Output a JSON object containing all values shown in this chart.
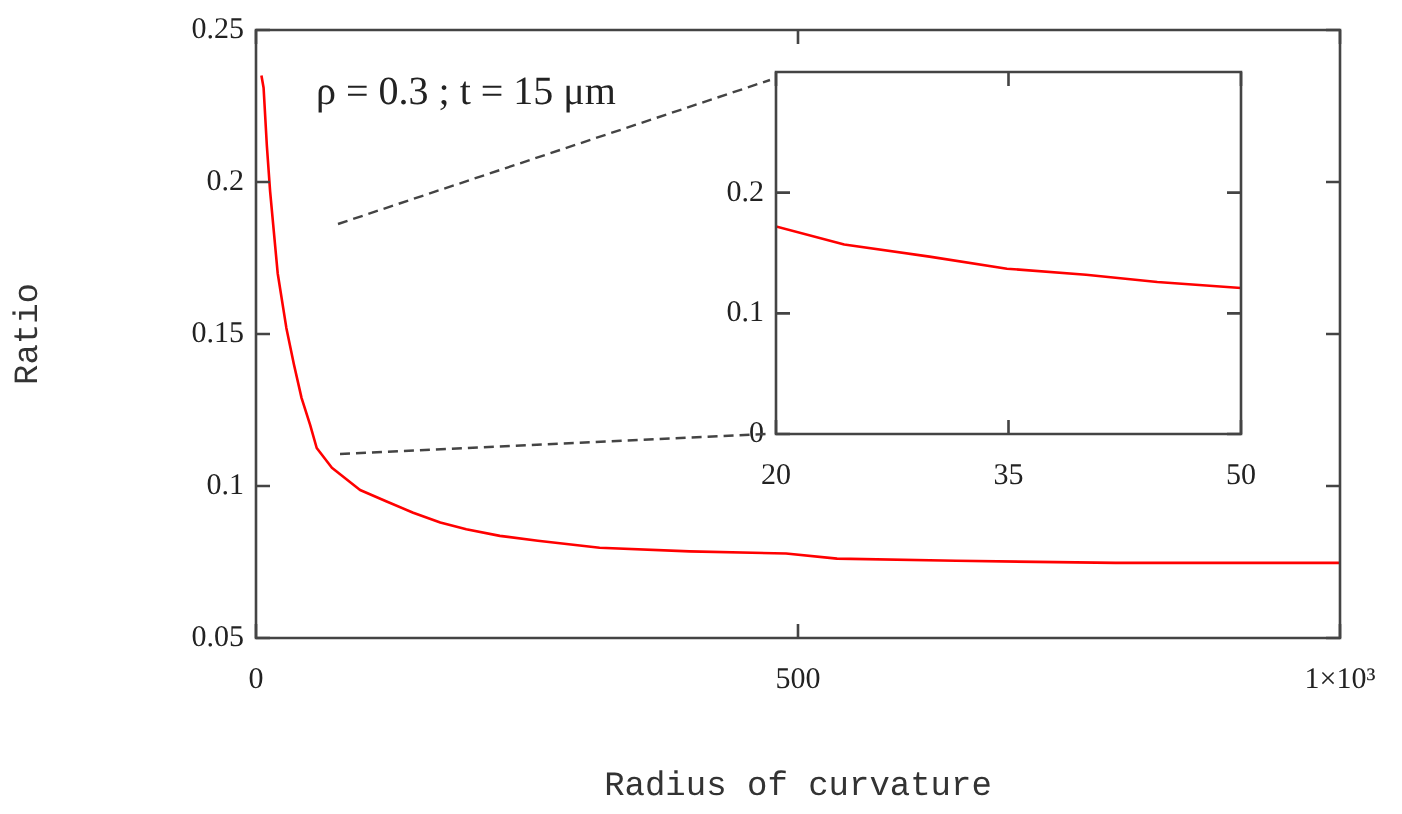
{
  "chart_data": [
    {
      "type": "line",
      "xlabel": "Radius of curvature",
      "ylabel": "Ratio",
      "annotations": [
        "ρ = 0.3 ; t = 15 μm"
      ],
      "x": [
        5,
        7,
        10,
        13,
        20,
        28,
        35,
        42,
        50,
        56,
        70,
        96,
        120,
        145,
        170,
        194,
        225,
        260,
        317,
        400,
        489,
        536,
        646,
        793,
        1000
      ],
      "series": [
        {
          "color": "#ff0000",
          "values": [
            0.235,
            0.231,
            0.212,
            0.197,
            0.17,
            0.152,
            0.14,
            0.129,
            0.12,
            0.1125,
            0.106,
            0.0987,
            0.095,
            0.0912,
            0.088,
            0.0858,
            0.0836,
            0.082,
            0.0797,
            0.0785,
            0.0778,
            0.0761,
            0.0754,
            0.0747,
            0.0747
          ]
        }
      ],
      "xlim": [
        0,
        1000
      ],
      "xticks": [
        0,
        500,
        {
          "value": 1000,
          "label": "1×10³"
        }
      ],
      "ylim": [
        0.05,
        0.25
      ],
      "yticks": [
        0.05,
        0.1,
        0.15,
        0.2,
        0.25
      ],
      "grid": false,
      "legend": false
    },
    {
      "type": "line",
      "x": [
        20,
        24.4,
        29.9,
        34.9,
        40,
        44.6,
        50
      ],
      "series": [
        {
          "color": "#ff0000",
          "values": [
            0.172,
            0.157,
            0.147,
            0.137,
            0.132,
            0.126,
            0.121
          ]
        }
      ],
      "xlim": [
        20,
        50
      ],
      "xticks": [
        20,
        35,
        50
      ],
      "ylim": [
        0,
        0.3
      ],
      "yticks": [
        0,
        0.1,
        0.2
      ],
      "grid": false,
      "legend": false
    }
  ]
}
